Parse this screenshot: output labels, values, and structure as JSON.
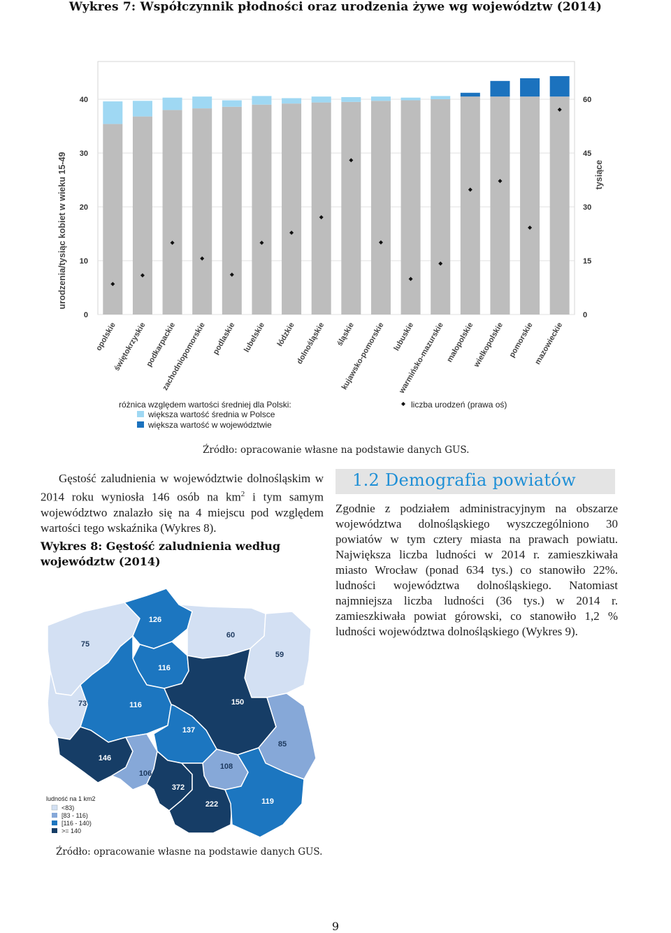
{
  "figure7": {
    "title": "Wykres 7: Współczynnik płodności oraz urodzenia żywe wg województw (2014)",
    "source": "Źródło: opracowanie własne na podstawie danych GUS."
  },
  "chart_data": {
    "type": "bar",
    "ylabel": "urodzenia/tysiąc kobiet w wieku 15-49",
    "y2label": "tysiące",
    "ylim": [
      0,
      40
    ],
    "y2lim": [
      0,
      60
    ],
    "yticks": [
      "0",
      "10",
      "20",
      "30",
      "40"
    ],
    "y2ticks": [
      "0",
      "15",
      "30",
      "45",
      "60"
    ],
    "grid": true,
    "categories": [
      "opolskie",
      "świętokrzyskie",
      "podkarpackie",
      "zachodniopomorskie",
      "podlaskie",
      "lubelskie",
      "łódzkie",
      "dolnośląskie",
      "śląskie",
      "kujawsko-pomorskie",
      "lubuskie",
      "warmińsko-mazurskie",
      "małopolskie",
      "wielkopolskie",
      "pomorskie",
      "mazowieckie"
    ],
    "series": [
      {
        "role": "base",
        "color": "#bdbdbd",
        "values": [
          35.4,
          36.8,
          38.0,
          38.3,
          38.6,
          39.0,
          39.2,
          39.4,
          39.5,
          39.7,
          39.8,
          40.0,
          40.5,
          40.5,
          40.5,
          40.5
        ]
      },
      {
        "role": "diff_national",
        "color": "#9fd8f3",
        "values": [
          4.2,
          2.9,
          2.3,
          2.2,
          1.2,
          1.6,
          1.0,
          1.1,
          0.9,
          0.8,
          0.5,
          0.6,
          0,
          0,
          0,
          0
        ]
      },
      {
        "role": "diff_voivodeship",
        "color": "#1b72be",
        "values": [
          0,
          0,
          0,
          0,
          0,
          0,
          0,
          0,
          0,
          0,
          0,
          0,
          0.7,
          2.9,
          3.4,
          3.8
        ]
      },
      {
        "role": "births",
        "axis": "right",
        "marker": "diamond",
        "values": [
          8.5,
          10.9,
          20.0,
          15.6,
          11.1,
          20.0,
          22.8,
          27.1,
          43.0,
          20.1,
          9.9,
          14.2,
          34.8,
          37.2,
          24.2,
          57.1
        ]
      }
    ],
    "legend": {
      "heading": "różnica względem wartości średniej dla Polski:",
      "item1": "większa wartość średnia w Polsce",
      "item2": "większa wartość w województwie",
      "dots": "liczba urodzeń (prawa oś)"
    }
  },
  "left_paragraph": {
    "part1": "Gęstość zaludnienia w województwie dolnośląskim w 2014 roku wyniosła 146 osób na km",
    "sup": "2",
    "part2": " i tym samym województwo znalazło się na 4 miejscu pod względem wartości tego wskaźnika (Wykres 8)."
  },
  "figure8": {
    "title": "Wykres 8: Gęstość zaludnienia według województw (2014)",
    "source": "Źródło: opracowanie własne na podstawie danych GUS."
  },
  "section": {
    "header": "1.2 Demografia powiatów"
  },
  "right_paragraph": "Zgodnie z podziałem administracyjnym na obszarze województwa dolnośląskiego wyszczególniono 30 powiatów w tym cztery miasta na prawach powiatu. Największa liczba ludności w 2014 r. zamieszkiwała miasto Wrocław (ponad 634 tys.) co stanowiło 22%. ludności województwa dolnośląskiego. Natomiast najmniejsza liczba ludności (36 tys.) w 2014 r. zamieszkiwała powiat górowski, co stanowiło 1,2 % ludności województwa dolnośląskiego (Wykres 9).",
  "map": {
    "colors": {
      "lt83": "#d3e0f3",
      "c83_116": "#86a8d8",
      "c116_140": "#1c76c0",
      "ge140": "#163d66"
    },
    "labels": {
      "zachodniopomorskie": "75",
      "pomorskie": "126",
      "warminsko": "60",
      "podlaskie": "59",
      "kujawsko": "116",
      "lubuskie": "73",
      "wielkopolskie": "116",
      "mazowieckie": "150",
      "lodzkie": "137",
      "lubelskie": "85",
      "dolnoslaskie": "146",
      "opolskie": "106",
      "swietokrzyskie": "108",
      "slaskie": "372",
      "malopolskie": "222",
      "podkarpackie": "119"
    },
    "legend": {
      "title": "ludność na 1 km2",
      "items": [
        "<83)",
        "[83 - 116)",
        "[116 - 140)",
        ">= 140"
      ]
    }
  },
  "page_number": "9"
}
